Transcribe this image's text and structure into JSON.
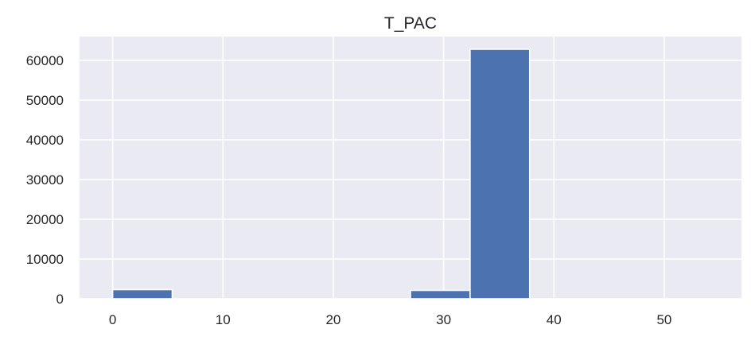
{
  "chart_data": {
    "type": "bar",
    "title": "T_PAC",
    "xlabel": "",
    "ylabel": "",
    "xlim": [
      -3.0,
      57.0
    ],
    "ylim": [
      0,
      66000
    ],
    "xticks": [
      0,
      10,
      20,
      30,
      40,
      50
    ],
    "yticks": [
      0,
      10000,
      20000,
      30000,
      40000,
      50000,
      60000
    ],
    "grid": true,
    "bins": [
      {
        "x0": 0.0,
        "x1": 5.4,
        "count": 2300
      },
      {
        "x0": 5.4,
        "x1": 10.8,
        "count": 0
      },
      {
        "x0": 10.8,
        "x1": 16.2,
        "count": 0
      },
      {
        "x0": 16.2,
        "x1": 21.6,
        "count": 0
      },
      {
        "x0": 21.6,
        "x1": 27.0,
        "count": 0
      },
      {
        "x0": 27.0,
        "x1": 32.4,
        "count": 2100
      },
      {
        "x0": 32.4,
        "x1": 37.8,
        "count": 62800
      },
      {
        "x0": 37.8,
        "x1": 43.2,
        "count": 0
      },
      {
        "x0": 43.2,
        "x1": 48.6,
        "count": 0
      },
      {
        "x0": 48.6,
        "x1": 54.0,
        "count": 0
      }
    ],
    "colors": {
      "bar": "#4c72b0",
      "background": "#eaeaf2",
      "grid": "#ffffff"
    }
  }
}
